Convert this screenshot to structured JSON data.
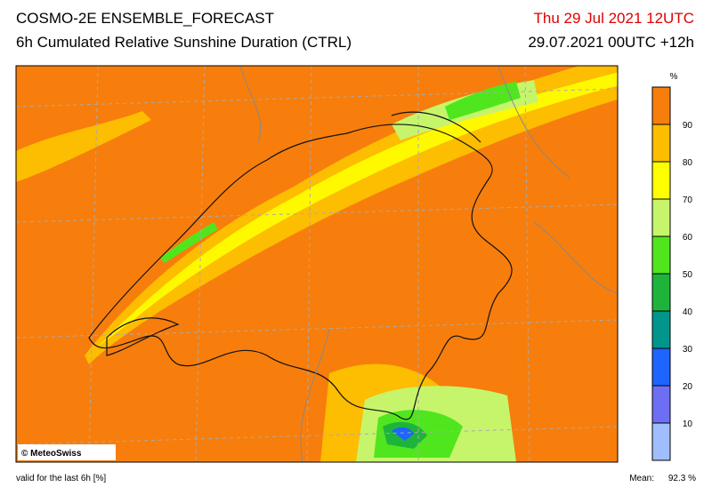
{
  "header": {
    "title": "COSMO-2E ENSEMBLE_FORECAST",
    "subtitle": "6h Cumulated Relative Sunshine Duration (CTRL)",
    "valid_time": "Thu 29 Jul 2021 12UTC",
    "run": "29.07.2021 00UTC +12h"
  },
  "legend": {
    "unit": "%",
    "ticks": [
      90,
      80,
      70,
      60,
      50,
      40,
      30,
      20,
      10
    ],
    "colors": [
      "#f77e0c",
      "#fdbd00",
      "#ffff00",
      "#c6f56c",
      "#50e61e",
      "#1eb43c",
      "#00968c",
      "#1e64ff",
      "#6e6ef5",
      "#a0befe"
    ]
  },
  "credit": "© MeteoSwiss",
  "footer": {
    "note": "valid for the last 6h [%]",
    "mean_label": "Mean:",
    "mean_value": "92.3 %"
  }
}
